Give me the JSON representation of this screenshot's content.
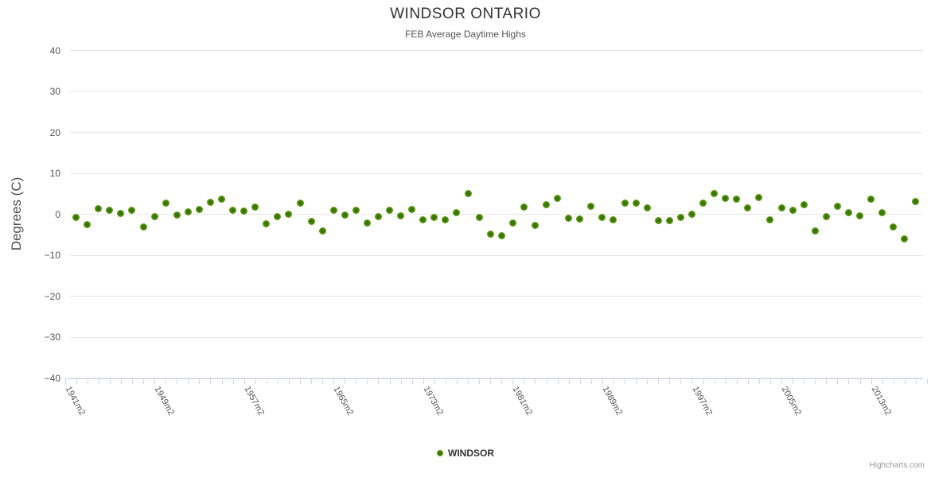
{
  "chart_data": {
    "type": "scatter",
    "title": "WINDSOR ONTARIO",
    "subtitle": "FEB Average Daytime Highs",
    "ylabel": "Degrees (C)",
    "ylim": [
      -40,
      40
    ],
    "grid": true,
    "legend_position": "bottom-center",
    "y_ticks": [
      40,
      30,
      20,
      10,
      0,
      -10,
      -20,
      -30,
      -40
    ],
    "y_tick_labels": [
      "40",
      "30",
      "20",
      "10",
      "0",
      "−10",
      "−20",
      "−30",
      "−40"
    ],
    "x_tick_labels": [
      "1941m2",
      "1949m2",
      "1957m2",
      "1965m2",
      "1973m2",
      "1981m2",
      "1989m2",
      "1997m2",
      "2005m2",
      "2013m2"
    ],
    "x_tick_positions": [
      0,
      8,
      16,
      24,
      32,
      40,
      48,
      56,
      64,
      72
    ],
    "series": [
      {
        "name": "WINDSOR",
        "color": "#7db821",
        "x": [
          1941,
          1942,
          1943,
          1944,
          1945,
          1946,
          1947,
          1948,
          1949,
          1950,
          1951,
          1952,
          1953,
          1954,
          1955,
          1956,
          1957,
          1958,
          1959,
          1960,
          1961,
          1962,
          1963,
          1964,
          1965,
          1966,
          1967,
          1968,
          1969,
          1970,
          1971,
          1972,
          1973,
          1974,
          1975,
          1976,
          1977,
          1978,
          1979,
          1980,
          1981,
          1982,
          1983,
          1984,
          1985,
          1986,
          1987,
          1988,
          1989,
          1990,
          1991,
          1992,
          1993,
          1994,
          1995,
          1996,
          1997,
          1998,
          1999,
          2000,
          2001,
          2002,
          2003,
          2004,
          2005,
          2006,
          2007,
          2008,
          2009,
          2010,
          2011,
          2012,
          2013,
          2014,
          2015,
          2016
        ],
        "values": [
          -0.7,
          -2.5,
          1.4,
          1.0,
          0.2,
          1.0,
          -3.2,
          -0.6,
          2.8,
          -0.1,
          0.5,
          1.2,
          2.9,
          3.7,
          0.9,
          0.8,
          1.8,
          -2.3,
          -0.5,
          0.0,
          2.8,
          -1.7,
          -4.1,
          0.9,
          -0.2,
          1.0,
          -2.1,
          -0.5,
          1.0,
          -0.3,
          1.2,
          -1.4,
          -0.7,
          -1.4,
          0.3,
          5.0,
          -0.7,
          -4.9,
          -5.2,
          -2.1,
          1.8,
          -2.7,
          2.4,
          3.9,
          -1.0,
          -1.2,
          1.9,
          -0.7,
          -1.4,
          2.7,
          2.7,
          1.6,
          -1.5,
          -1.5,
          -0.8,
          0.0,
          2.7,
          5.0,
          3.9,
          3.7,
          1.5,
          4.0,
          -1.4,
          1.6,
          1.0,
          2.4,
          -4.0,
          -0.5,
          1.9,
          0.4,
          -0.3,
          3.6,
          0.3,
          -3.1,
          -6.0,
          3.2
        ]
      }
    ]
  },
  "legend": {
    "items": [
      {
        "label": "WINDSOR",
        "marker_color": "#7db821"
      }
    ]
  },
  "credits": {
    "label": "Highcharts.com"
  },
  "colors": {
    "title": "#333333",
    "subtitle": "#555555",
    "gridline": "#e6e6e6",
    "axis_line": "#ccd6eb",
    "marker_outer": "#8abf2d",
    "marker_center": "#2e6b02",
    "credits": "#999999"
  }
}
